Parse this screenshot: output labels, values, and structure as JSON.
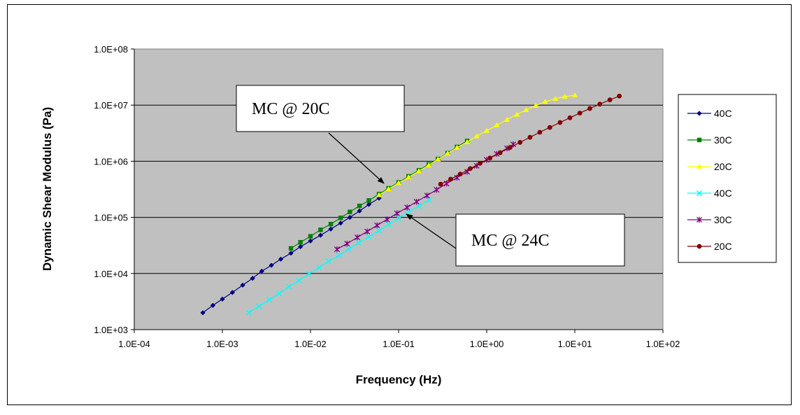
{
  "chart_data": {
    "type": "scatter",
    "title": "",
    "xlabel": "Frequency (Hz)",
    "ylabel": "Dynamic Shear Modulus (Pa)",
    "x_scale": "log",
    "y_scale": "log",
    "xlim": [
      0.0001,
      100
    ],
    "ylim": [
      1000,
      100000000
    ],
    "x_ticks": [
      "1.0E-04",
      "1.0E-03",
      "1.0E-02",
      "1.0E-01",
      "1.0E+00",
      "1.0E+01",
      "1.0E+02"
    ],
    "y_ticks": [
      "1.0E+03",
      "1.0E+04",
      "1.0E+05",
      "1.0E+06",
      "1.0E+07",
      "1.0E+08"
    ],
    "grid": "horizontal",
    "plot_background": "#c0c0c0",
    "legend_position": "right",
    "series": [
      {
        "name": "40C",
        "color": "#000080",
        "marker": "diamond",
        "group": "MC @ 20C",
        "x": [
          0.0006,
          0.00078,
          0.001,
          0.0013,
          0.0017,
          0.0022,
          0.0028,
          0.0036,
          0.0046,
          0.006,
          0.0077,
          0.01,
          0.013,
          0.017,
          0.022,
          0.028,
          0.036,
          0.046,
          0.06
        ],
        "y": [
          2000,
          2700,
          3500,
          4600,
          6200,
          8200,
          11000,
          14000,
          18000,
          23000,
          30000,
          38000,
          48000,
          62000,
          79000,
          100000,
          130000,
          170000,
          220000
        ]
      },
      {
        "name": "30C",
        "color": "#008000",
        "marker": "square",
        "group": "MC @ 20C",
        "x": [
          0.006,
          0.0077,
          0.01,
          0.013,
          0.017,
          0.022,
          0.028,
          0.036,
          0.046,
          0.06,
          0.077,
          0.1,
          0.13,
          0.17,
          0.22,
          0.28,
          0.36,
          0.46,
          0.6
        ],
        "y": [
          28000,
          36000,
          46000,
          60000,
          76000,
          98000,
          125000,
          160000,
          200000,
          260000,
          330000,
          420000,
          540000,
          690000,
          880000,
          1100000,
          1400000,
          1800000,
          2300000
        ]
      },
      {
        "name": "20C",
        "color": "#ffff00",
        "marker": "triangle",
        "group": "MC @ 20C",
        "x": [
          0.06,
          0.077,
          0.1,
          0.13,
          0.17,
          0.22,
          0.28,
          0.36,
          0.46,
          0.6,
          0.77,
          1.0,
          1.3,
          1.7,
          2.2,
          2.8,
          3.6,
          4.6,
          6.0,
          7.7,
          10.0
        ],
        "y": [
          250000,
          320000,
          410000,
          520000,
          670000,
          850000,
          1080000,
          1380000,
          1750000,
          2200000,
          2800000,
          3500000,
          4400000,
          5500000,
          6800000,
          8200000,
          9800000,
          11500000,
          13000000,
          14200000,
          15000000
        ]
      },
      {
        "name": "40C",
        "color": "#00ffff",
        "marker": "x",
        "group": "MC @ 24C",
        "x": [
          0.002,
          0.0026,
          0.0034,
          0.0044,
          0.0057,
          0.0074,
          0.0096,
          0.0125,
          0.016,
          0.021,
          0.027,
          0.035,
          0.046,
          0.06,
          0.077,
          0.1,
          0.13,
          0.17,
          0.22
        ],
        "y": [
          2000,
          2600,
          3400,
          4400,
          5800,
          7500,
          9800,
          12800,
          16500,
          21000,
          27000,
          35000,
          45000,
          58000,
          75000,
          97000,
          125000,
          160000,
          205000
        ]
      },
      {
        "name": "30C",
        "color": "#800080",
        "marker": "star",
        "group": "MC @ 24C",
        "x": [
          0.02,
          0.026,
          0.034,
          0.044,
          0.057,
          0.074,
          0.096,
          0.125,
          0.16,
          0.21,
          0.27,
          0.35,
          0.46,
          0.6,
          0.77,
          1.0,
          1.3,
          1.7,
          2.0
        ],
        "y": [
          27000,
          34000,
          44000,
          56000,
          72000,
          92000,
          118000,
          150000,
          190000,
          245000,
          310000,
          400000,
          510000,
          650000,
          830000,
          1060000,
          1350000,
          1700000,
          2000000
        ]
      },
      {
        "name": "20C",
        "color": "#800000",
        "marker": "circle",
        "group": "MC @ 24C",
        "x": [
          0.3,
          0.39,
          0.5,
          0.65,
          0.84,
          1.09,
          1.42,
          1.84,
          2.39,
          3.1,
          4.0,
          5.2,
          6.8,
          8.8,
          11.4,
          14.8,
          19.2,
          25.0,
          32.0
        ],
        "y": [
          390000,
          480000,
          590000,
          740000,
          920000,
          1140000,
          1420000,
          1760000,
          2170000,
          2670000,
          3280000,
          4000000,
          4900000,
          5950000,
          7200000,
          8700000,
          10400000,
          12400000,
          14500000
        ]
      }
    ],
    "annotations": [
      {
        "text": "MC @ 20C",
        "target_x": 0.08,
        "target_y": 330000
      },
      {
        "text": "MC @ 24C",
        "target_x": 0.11,
        "target_y": 130000
      }
    ]
  }
}
